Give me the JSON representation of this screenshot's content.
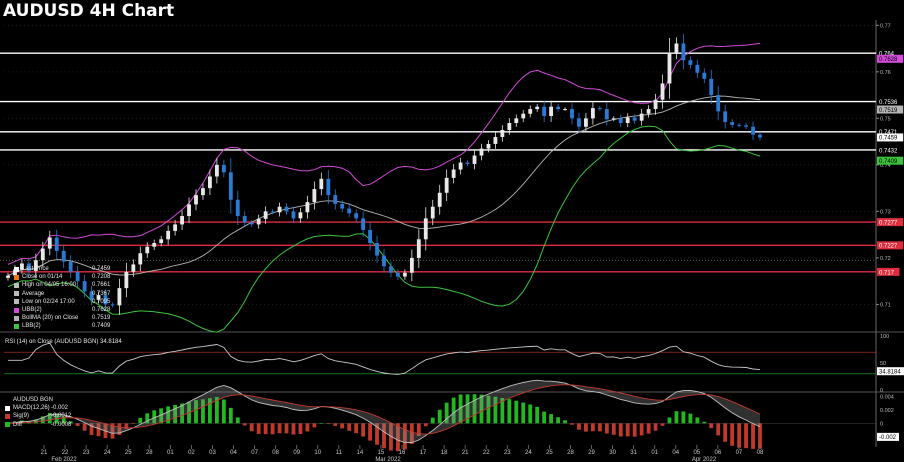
{
  "title": "AUDUSD 4H Chart",
  "colors": {
    "background": "#000000",
    "up_candle": "#e8e8e8",
    "down_candle": "#2a7ad8",
    "upper_band": "#d24ad8",
    "middle_band": "#b4b4b4",
    "lower_band": "#3cc43c",
    "resistance_line": "#ffffff",
    "support_line": "#e02c3c",
    "rsi_line": "#c8c8c8",
    "macd_line": "#bfbfbf",
    "signal_line": "#c0392b",
    "diff_pos": "#22b822",
    "diff_neg": "#c0392b"
  },
  "legend": [
    {
      "label": "Last Price",
      "value": "0.7459",
      "color": "#ffffff"
    },
    {
      "label": "Close on 01/14",
      "value": "0.7208",
      "color": "#e87820"
    },
    {
      "label": "High on 04/05 16:00",
      "value": "0.7661",
      "color": "#bbbbbb"
    },
    {
      "label": "Average",
      "value": "0.7367",
      "color": "#bbbbbb"
    },
    {
      "label": "Low on 02/24 17:00",
      "value": "0.7095",
      "color": "#bbbbbb"
    },
    {
      "label": "UBB(2)",
      "value": "0.7628",
      "color": "#d24ad8"
    },
    {
      "label": "BollMA (20)  on Close",
      "value": "0.7519",
      "color": "#b4b4b4"
    },
    {
      "label": "LBB(2)",
      "value": "0.7409",
      "color": "#3cc43c"
    }
  ],
  "rsi_label": "RSI (14)  on Close (AUDUSD BGN) 34.8184",
  "macd_legend": [
    {
      "label": "AUDUSD BGN",
      "value": "",
      "color": ""
    },
    {
      "label": "MACD(12,26)",
      "value": "-0.002",
      "color": "#ffffff"
    },
    {
      "label": "Sig(9)",
      "value": "-0.0012",
      "color": "#c0392b"
    },
    {
      "label": "Diff",
      "value": "-0.0008",
      "color": "#22b822"
    }
  ],
  "chart_data": [
    {
      "type": "candlestick",
      "title": "AUDUSD 4H Chart",
      "x_tick_labels": [
        "21",
        "22",
        "23",
        "24",
        "25",
        "28",
        "01",
        "02",
        "03",
        "04",
        "07",
        "08",
        "09",
        "10",
        "11",
        "14",
        "15",
        "16",
        "17",
        "18",
        "21",
        "22",
        "23",
        "24",
        "25",
        "28",
        "29",
        "30",
        "31",
        "01",
        "04",
        "05",
        "06",
        "07",
        "08"
      ],
      "month_labels": [
        "Feb 2022",
        "Mar 2022",
        "Apr 2022"
      ],
      "y_tick_labels": [
        "0.77",
        "0.76",
        "0.75",
        "0.74",
        "0.73",
        "0.72",
        "0.71"
      ],
      "ylim": [
        0.7045,
        0.7705
      ],
      "close_series": [
        0.7162,
        0.7175,
        0.7188,
        0.7172,
        0.7195,
        0.722,
        0.7244,
        0.7215,
        0.7192,
        0.717,
        0.715,
        0.7128,
        0.711,
        0.712,
        0.71,
        0.7098,
        0.7135,
        0.717,
        0.7186,
        0.721,
        0.7224,
        0.7232,
        0.724,
        0.7258,
        0.7272,
        0.729,
        0.7315,
        0.7335,
        0.735,
        0.7375,
        0.74,
        0.7384,
        0.7325,
        0.729,
        0.7276,
        0.7272,
        0.7284,
        0.73,
        0.7298,
        0.731,
        0.73,
        0.7285,
        0.7298,
        0.732,
        0.7348,
        0.737,
        0.7335,
        0.7316,
        0.7306,
        0.7296,
        0.7285,
        0.726,
        0.7232,
        0.7205,
        0.7182,
        0.7168,
        0.716,
        0.7168,
        0.72,
        0.724,
        0.7285,
        0.731,
        0.734,
        0.7372,
        0.739,
        0.7405,
        0.7402,
        0.742,
        0.7435,
        0.7445,
        0.746,
        0.7475,
        0.749,
        0.75,
        0.751,
        0.752,
        0.7525,
        0.7505,
        0.7525,
        0.752,
        0.752,
        0.75,
        0.7482,
        0.75,
        0.7522,
        0.752,
        0.7498,
        0.75,
        0.749,
        0.7502,
        0.7495,
        0.751,
        0.752,
        0.754,
        0.7575,
        0.764,
        0.7661,
        0.7625,
        0.7615,
        0.7598,
        0.7585,
        0.755,
        0.7515,
        0.7492,
        0.7486,
        0.7485,
        0.7482,
        0.7465,
        0.7459
      ],
      "overlays": [
        {
          "name": "UBB(2)",
          "value_label": "0.7628"
        },
        {
          "name": "BollMA (20)  on Close",
          "value_label": "0.7519"
        },
        {
          "name": "LBB(2)",
          "value_label": "0.7409"
        }
      ],
      "horizontal_levels": [
        {
          "value": 0.764,
          "label": "0.764",
          "color": "#ffffff",
          "kind": "resistance"
        },
        {
          "value": 0.7536,
          "label": "0.7536",
          "color": "#ffffff",
          "kind": "resistance"
        },
        {
          "value": 0.7471,
          "label": "0.7471",
          "color": "#ffffff",
          "kind": "resistance"
        },
        {
          "value": 0.7432,
          "label": "0.7432",
          "color": "#ffffff",
          "kind": "resistance"
        },
        {
          "value": 0.7277,
          "label": "0.7277",
          "color": "#e02c3c",
          "kind": "support"
        },
        {
          "value": 0.7227,
          "label": "0.7227",
          "color": "#e02c3c",
          "kind": "support"
        },
        {
          "value": 0.717,
          "label": "0.717",
          "color": "#e02c3c",
          "kind": "support"
        }
      ],
      "right_axis_tags": [
        {
          "value": 0.7628,
          "label": "0.7628",
          "color": "#d24ad8"
        },
        {
          "value": 0.7519,
          "label": "0.7519",
          "color": "#b4b4b4"
        },
        {
          "value": 0.7459,
          "label": "0.7459",
          "color": "#ffffff"
        },
        {
          "value": 0.7409,
          "label": "0.7409",
          "color": "#3cc43c"
        }
      ]
    },
    {
      "type": "line",
      "title": "RSI (14)  on Close (AUDUSD BGN) 34.8184",
      "y_tick_labels": [
        "100",
        "50",
        "0"
      ],
      "ylim": [
        0,
        100
      ],
      "reference_level": 70,
      "last_value_label": "34.8184"
    },
    {
      "type": "bar",
      "title": "AUDUSD BGN",
      "y_tick_labels": [
        "0.004",
        "0.002",
        "0",
        "-0.002"
      ],
      "ylim": [
        -0.0035,
        0.0045
      ],
      "series": [
        {
          "name": "MACD(12,26)",
          "value_label": "-0.002"
        },
        {
          "name": "Sig(9)",
          "value_label": "-0.0012"
        },
        {
          "name": "Diff",
          "value_label": "-0.0008"
        }
      ],
      "last_tag_label": "-0.002"
    }
  ]
}
